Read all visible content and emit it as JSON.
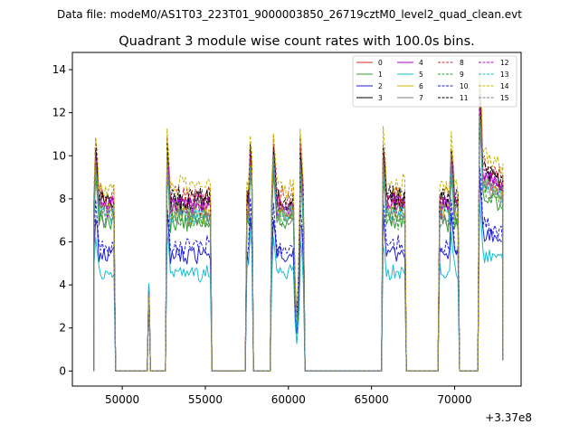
{
  "chart_data": {
    "type": "line",
    "suptitle": "Data file: modeM0/AS1T03_223T01_9000003850_26719cztM0_level2_quad_clean.evt",
    "title": "Quadrant 3 module wise count rates with 100.0s bins.",
    "xlabel": "",
    "ylabel": "",
    "x_offset_label": "+3.37e8",
    "xlim": [
      47000,
      74000
    ],
    "ylim": [
      -0.7,
      14.8
    ],
    "x_ticks": [
      50000,
      55000,
      60000,
      65000,
      70000
    ],
    "x_tick_labels": [
      "50000",
      "55000",
      "60000",
      "65000",
      "70000"
    ],
    "y_ticks": [
      0,
      2,
      4,
      6,
      8,
      10,
      12,
      14
    ],
    "y_tick_labels": [
      "0",
      "2",
      "4",
      "6",
      "8",
      "10",
      "12",
      "14"
    ],
    "legend_position": "top-right",
    "segments": [
      {
        "start": 48300,
        "end": 49600,
        "peak_bin": 1,
        "start_ramp": false,
        "end_ramp": true
      },
      {
        "start": 51600,
        "end": 51700,
        "spike": true
      },
      {
        "start": 52600,
        "end": 55400,
        "peak_bin": 1,
        "start_ramp": true,
        "end_ramp": true
      },
      {
        "start": 57400,
        "end": 57900,
        "peak_bin": 3,
        "start_ramp": true,
        "end_ramp": true
      },
      {
        "start": 58900,
        "end": 60300,
        "peak_bin": 2,
        "start_ramp": true,
        "end_ramp": false
      },
      {
        "start": 60300,
        "end": 60700,
        "dip": true
      },
      {
        "start": 60700,
        "end": 61000,
        "peak_bin": 0,
        "start_ramp": false,
        "end_ramp": true
      },
      {
        "start": 65600,
        "end": 67100,
        "peak_bin": 1,
        "start_ramp": true,
        "end_ramp": true
      },
      {
        "start": 69000,
        "end": 70300,
        "peak_bin": 8,
        "start_ramp": true,
        "end_ramp": true
      },
      {
        "start": 71400,
        "end": 72900,
        "peak_bin": 1,
        "start_ramp": true,
        "end_ramp": true
      }
    ],
    "series": [
      {
        "name": "0",
        "color": "#d62728",
        "dash": "solid",
        "base": 7.6
      },
      {
        "name": "1",
        "color": "#2ca02c",
        "dash": "solid",
        "base": 7.0
      },
      {
        "name": "2",
        "color": "#1f1fd6",
        "dash": "solid",
        "base": 5.4
      },
      {
        "name": "3",
        "color": "#000000",
        "dash": "solid",
        "base": 7.9
      },
      {
        "name": "4",
        "color": "#b000d0",
        "dash": "solid",
        "base": 7.8
      },
      {
        "name": "5",
        "color": "#17becf",
        "dash": "solid",
        "base": 4.6
      },
      {
        "name": "6",
        "color": "#c8b400",
        "dash": "solid",
        "base": 7.4
      },
      {
        "name": "7",
        "color": "#7f7f7f",
        "dash": "solid",
        "base": 7.2
      },
      {
        "name": "8",
        "color": "#d62728",
        "dash": "dashed",
        "base": 8.2
      },
      {
        "name": "9",
        "color": "#2ca02c",
        "dash": "dashed",
        "base": 7.1
      },
      {
        "name": "10",
        "color": "#1f1fd6",
        "dash": "dashed",
        "base": 5.8
      },
      {
        "name": "11",
        "color": "#000000",
        "dash": "dashed",
        "base": 8.0
      },
      {
        "name": "12",
        "color": "#b000d0",
        "dash": "dashed",
        "base": 7.7
      },
      {
        "name": "13",
        "color": "#17becf",
        "dash": "dashed",
        "base": 7.3
      },
      {
        "name": "14",
        "color": "#c8b400",
        "dash": "dashed",
        "base": 8.6
      },
      {
        "name": "15",
        "color": "#7f7f7f",
        "dash": "dashed",
        "base": 7.5
      }
    ]
  }
}
